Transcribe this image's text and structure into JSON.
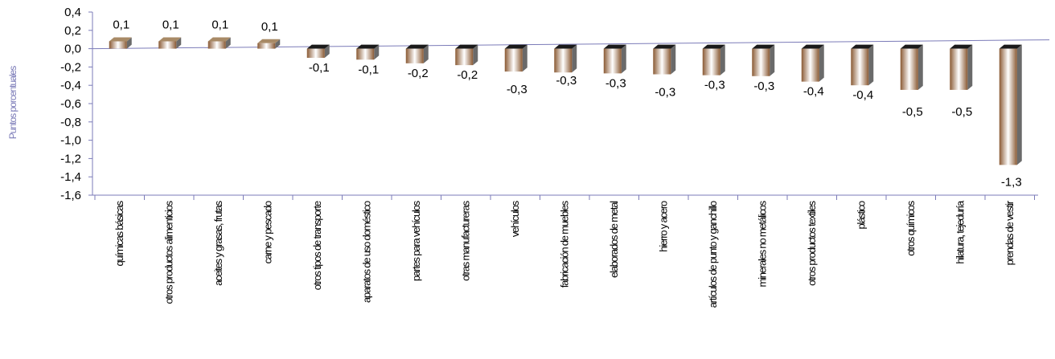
{
  "chart_data": {
    "type": "bar",
    "ylabel": "Puntos porcentuales",
    "ylim": [
      -1.6,
      0.4
    ],
    "ytick_values": [
      0.4,
      0.2,
      0.0,
      -0.2,
      -0.4,
      -0.6,
      -0.8,
      -1.0,
      -1.2,
      -1.4,
      -1.6
    ],
    "ytick_labels": [
      "0,4",
      "0,2",
      "0,0",
      "-0,2",
      "-0,4",
      "-0,6",
      "-0,8",
      "-1,0",
      "-1,2",
      "-1,4",
      "-1,6"
    ],
    "categories": [
      "químicas básicas",
      "otros productos alimenticios",
      "aceites y grasas, frutas",
      "carne y pescado",
      "otros tipos de transporte",
      "aparatos de uso doméstico",
      "partes para vehículos",
      "otras manufactureras",
      "vehículos",
      "fabricación de muebles",
      "elaborados de metal",
      "hierro y acero",
      "artículos de punto y ganchillo",
      "minerales no metálicos",
      "otros productos textiles",
      "plástico",
      "otros químicos",
      "hilatura, tejeduría",
      "prendas de vestir"
    ],
    "values": [
      0.08,
      0.08,
      0.08,
      0.06,
      -0.1,
      -0.12,
      -0.16,
      -0.18,
      -0.25,
      -0.26,
      -0.27,
      -0.28,
      -0.29,
      -0.3,
      -0.36,
      -0.4,
      -0.45,
      -0.45,
      -1.27
    ],
    "data_labels": [
      "0,1",
      "0,1",
      "0,1",
      "0,1",
      "-0,1",
      "-0,1",
      "-0,2",
      "-0,2",
      "-0,3",
      "-0,3",
      "-0,3",
      "-0,3",
      "-0,3",
      "-0,3",
      "-0,4",
      "-0,4",
      "-0,5",
      "-0,5",
      "-1,3"
    ],
    "grid": false,
    "colors": {
      "bar_edge": "#8a5a34",
      "bar_mid": "#ffffff",
      "bar_side": "#6a6a6a",
      "bar_top": "#1a1a1a",
      "axis": "#7b7bb8",
      "zero_line": "#7b7bb8"
    }
  }
}
